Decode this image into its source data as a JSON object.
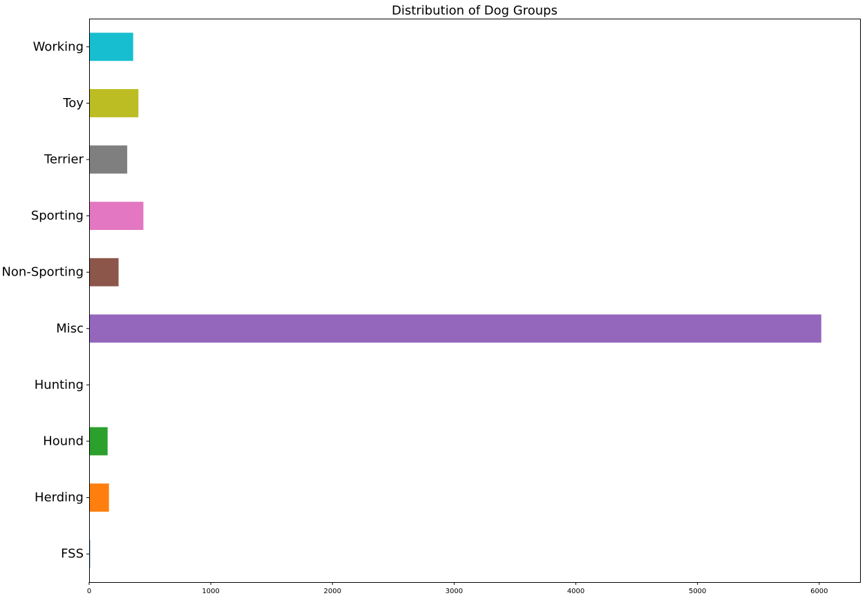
{
  "chart_data": {
    "type": "bar",
    "orientation": "horizontal",
    "title": "Distribution of Dog Groups",
    "xlabel": "",
    "ylabel": "",
    "xlim": [
      0,
      6336
    ],
    "xticks": [
      0,
      1000,
      2000,
      3000,
      4000,
      5000,
      6000
    ],
    "grid": false,
    "categories": [
      "FSS",
      "Herding",
      "Hound",
      "Hunting",
      "Misc",
      "Non-Sporting",
      "Sporting",
      "Terrier",
      "Toy",
      "Working"
    ],
    "values": [
      8,
      163,
      152,
      0,
      6017,
      242,
      446,
      313,
      405,
      362
    ],
    "colors": [
      "#1f77b4",
      "#ff7f0e",
      "#2ca02c",
      "#d62728",
      "#9467bd",
      "#8c564b",
      "#e377c2",
      "#7f7f7f",
      "#bcbd22",
      "#17becf"
    ]
  }
}
